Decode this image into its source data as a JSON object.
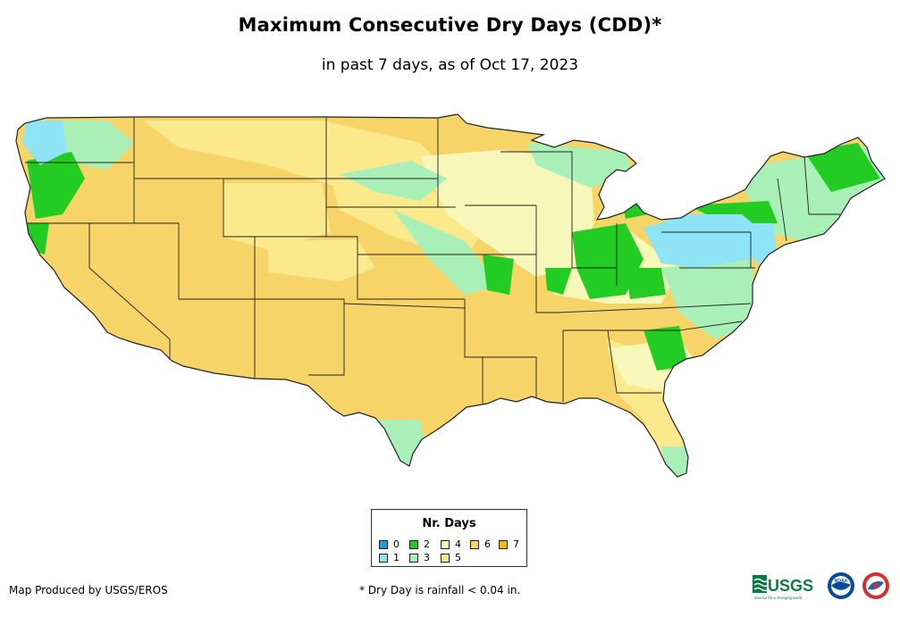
{
  "title": "Maximum Consecutive Dry Days (CDD)*",
  "subtitle": "in past 7 days, as of Oct 17, 2023",
  "legend": {
    "title": "Nr. Days",
    "items": [
      {
        "label": "0",
        "color": "#1f9be3"
      },
      {
        "label": "1",
        "color": "#8ee3f5"
      },
      {
        "label": "2",
        "color": "#22cc22"
      },
      {
        "label": "3",
        "color": "#a8f0b8"
      },
      {
        "label": "4",
        "color": "#f7f7b9"
      },
      {
        "label": "5",
        "color": "#fbe98c"
      },
      {
        "label": "6",
        "color": "#f6d468"
      },
      {
        "label": "7",
        "color": "#f4b800"
      }
    ]
  },
  "footer": {
    "producer": "Map Produced by USGS/EROS",
    "note": "* Dry Day is rainfall < 0.04 in."
  },
  "logos": {
    "usgs": "USGS",
    "usgs_tagline": "science for a changing world",
    "noaa": "NOAA"
  }
}
